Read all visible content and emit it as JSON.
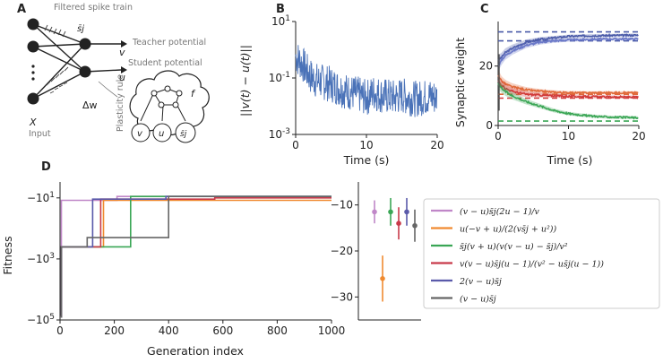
{
  "panels": {
    "A": {
      "letter": "A",
      "filtered_spike_train": "Filtered spike train",
      "sj": "s̄j",
      "teacher": "Teacher potential",
      "v": "v",
      "student": "Student potential",
      "u": "u",
      "dw": "Δw",
      "plasticity": "Plasticity rule",
      "X": "X",
      "input": "Input",
      "f": "f",
      "node_v": "v",
      "node_u": "u",
      "node_s": "s̄j"
    },
    "B": {
      "letter": "B",
      "ylabel": "||v(t) − u(t)||",
      "xlabel": "Time (s)"
    },
    "C": {
      "letter": "C",
      "ylabel": "Synaptic weight",
      "xlabel": "Time (s)"
    },
    "D": {
      "letter": "D",
      "ylabel": "Fitness",
      "xlabel": "Generation index"
    }
  },
  "chart_data": [
    {
      "id": "B",
      "type": "line",
      "xlabel": "Time (s)",
      "ylabel": "||v(t) − u(t)||",
      "yscale": "log",
      "xlim": [
        0,
        20
      ],
      "ylim": [
        0.001,
        10
      ],
      "xticks": [
        "0",
        "10",
        "20"
      ],
      "yticks": [
        "10^1",
        "10^-1",
        "10^-3"
      ],
      "series": [
        {
          "color": "#4a72b8",
          "x": [
            0,
            1,
            2,
            3,
            4,
            5,
            6,
            7,
            8,
            9,
            10,
            11,
            12,
            13,
            14,
            15,
            16,
            17,
            18,
            19,
            20
          ],
          "y": [
            0.6,
            0.3,
            0.12,
            0.08,
            0.07,
            0.06,
            0.045,
            0.035,
            0.03,
            0.025,
            0.02,
            0.03,
            0.025,
            0.022,
            0.02,
            0.024,
            0.02,
            0.018,
            0.02,
            0.022,
            0.02
          ]
        }
      ]
    },
    {
      "id": "C",
      "type": "line",
      "xlabel": "Time (s)",
      "ylabel": "Synaptic weight",
      "xlim": [
        0,
        20
      ],
      "ylim": [
        0,
        35
      ],
      "xticks": [
        "0",
        "10",
        "20"
      ],
      "yticks": [
        "0",
        "20"
      ],
      "reference_levels": [
        {
          "color": "#4a5aa8",
          "y": 31.5
        },
        {
          "color": "#4a5aa8",
          "y": 28.5
        },
        {
          "color": "#e06a3a",
          "y": 10.5
        },
        {
          "color": "#d13a3a",
          "y": 9.2
        },
        {
          "color": "#3aa655",
          "y": 1.5
        }
      ],
      "series": [
        {
          "color": "#4a5aa8",
          "x": [
            0,
            0.5,
            1,
            2,
            3,
            4,
            6,
            8,
            10,
            13,
            16,
            20
          ],
          "y": [
            22,
            23,
            24.5,
            26,
            27,
            28,
            29,
            29.5,
            30,
            30.2,
            30.3,
            30.4
          ]
        },
        {
          "color": "#6a78c8",
          "x": [
            0,
            0.5,
            1,
            2,
            3,
            4,
            6,
            8,
            10,
            13,
            16,
            20
          ],
          "y": [
            20,
            22,
            23.5,
            25,
            26,
            27,
            28,
            28.5,
            28.8,
            29,
            29.1,
            29.2
          ]
        },
        {
          "color": "#e06a3a",
          "x": [
            0,
            0.5,
            1,
            2,
            3,
            4,
            6,
            8,
            10,
            13,
            16,
            20
          ],
          "y": [
            17,
            15,
            14,
            13,
            12.5,
            12,
            11.5,
            11.2,
            11,
            11,
            11,
            11
          ]
        },
        {
          "color": "#d13a3a",
          "x": [
            0,
            0.5,
            1,
            2,
            3,
            4,
            6,
            8,
            10,
            13,
            16,
            20
          ],
          "y": [
            15,
            13.5,
            12.5,
            11.5,
            11,
            10.5,
            10.2,
            10,
            9.8,
            9.7,
            9.6,
            9.6
          ]
        },
        {
          "color": "#3aa655",
          "x": [
            0,
            0.5,
            1,
            2,
            3,
            4,
            6,
            8,
            10,
            13,
            16,
            20
          ],
          "y": [
            14,
            12.5,
            11.5,
            10,
            9,
            8,
            6.5,
            5,
            4,
            3.2,
            2.8,
            2.6
          ]
        }
      ]
    },
    {
      "id": "D_traces",
      "type": "line",
      "xlabel": "Generation index",
      "ylabel": "Fitness",
      "xlim": [
        0,
        1000
      ],
      "yscale": "symlog",
      "ylim": [
        -100000,
        -3
      ],
      "xticks": [
        "0",
        "200",
        "400",
        "600",
        "800",
        "1000"
      ],
      "yticks": [
        "−10^1",
        "−10^3",
        "−10^5"
      ],
      "series": [
        {
          "color": "#c087c8",
          "x": [
            0,
            5,
            210,
            1000
          ],
          "y": [
            -80000,
            -12,
            -9,
            -9
          ]
        },
        {
          "color": "#f08a30",
          "x": [
            0,
            5,
            160,
            580,
            1000
          ],
          "y": [
            -80000,
            -400,
            -12,
            -12,
            -12
          ]
        },
        {
          "color": "#3aa655",
          "x": [
            0,
            5,
            260,
            1000
          ],
          "y": [
            -80000,
            -400,
            -9,
            -9
          ]
        },
        {
          "color": "#c83a4a",
          "x": [
            0,
            5,
            150,
            570,
            1000
          ],
          "y": [
            -80000,
            -400,
            -11,
            -10,
            -10
          ]
        },
        {
          "color": "#5a5aaa",
          "x": [
            0,
            5,
            120,
            390,
            1000
          ],
          "y": [
            -80000,
            -400,
            -11,
            -9,
            -9
          ]
        },
        {
          "color": "#666666",
          "x": [
            0,
            5,
            100,
            400,
            1000
          ],
          "y": [
            -80000,
            -400,
            -200,
            -9,
            -9
          ]
        }
      ]
    },
    {
      "id": "D_errorbars",
      "type": "scatter",
      "ylim": [
        -35,
        -5
      ],
      "yticks": [
        "−10",
        "−20",
        "−30"
      ],
      "series": [
        {
          "color": "#c087c8",
          "y": -11.5,
          "err": 2.5
        },
        {
          "color": "#f08a30",
          "y": -26,
          "err": 5
        },
        {
          "color": "#3aa655",
          "y": -11.5,
          "err": 3
        },
        {
          "color": "#c83a4a",
          "y": -14,
          "err": 3.5
        },
        {
          "color": "#5a5aaa",
          "y": -11.5,
          "err": 3
        },
        {
          "color": "#666666",
          "y": -14.5,
          "err": 3.5
        }
      ]
    }
  ],
  "legend": [
    {
      "color": "#c087c8",
      "label": "(v − u)s̄j(2u − 1)/v"
    },
    {
      "color": "#f08a30",
      "label": "u(−v + u)/(2(vs̄j + u²))"
    },
    {
      "color": "#3aa655",
      "label": "s̄j(v + u)(v(v − u) − s̄j)/v²"
    },
    {
      "color": "#c83a4a",
      "label": "v(v − u)s̄j(u − 1)/(v² − us̄j(u − 1))"
    },
    {
      "color": "#5a5aaa",
      "label": "2(v − u)s̄j"
    },
    {
      "color": "#666666",
      "label": "(v − u)s̄j"
    }
  ]
}
